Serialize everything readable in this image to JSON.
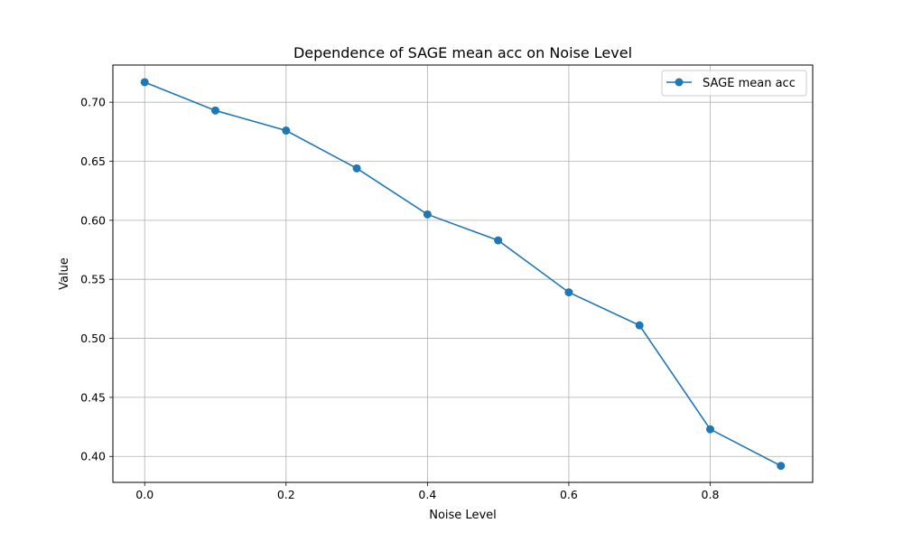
{
  "chart_data": {
    "type": "line",
    "title": "Dependence of SAGE mean acc on Noise Level",
    "xlabel": "Noise Level",
    "ylabel": "Value",
    "xlim": [
      -0.045,
      0.945
    ],
    "ylim": [
      0.378,
      0.7315
    ],
    "x": [
      0.0,
      0.1,
      0.2,
      0.3,
      0.4,
      0.5,
      0.6,
      0.7,
      0.8,
      0.9
    ],
    "xticks": [
      "0.0",
      "0.2",
      "0.4",
      "0.6",
      "0.8"
    ],
    "yticks": [
      "0.40",
      "0.45",
      "0.50",
      "0.55",
      "0.60",
      "0.65",
      "0.70"
    ],
    "series": [
      {
        "name": "SAGE mean acc",
        "values": [
          0.717,
          0.693,
          0.676,
          0.644,
          0.605,
          0.583,
          0.539,
          0.511,
          0.423,
          0.392
        ],
        "color": "#1f77b4",
        "marker": "circle"
      }
    ],
    "grid": true,
    "legend": "upper right"
  }
}
